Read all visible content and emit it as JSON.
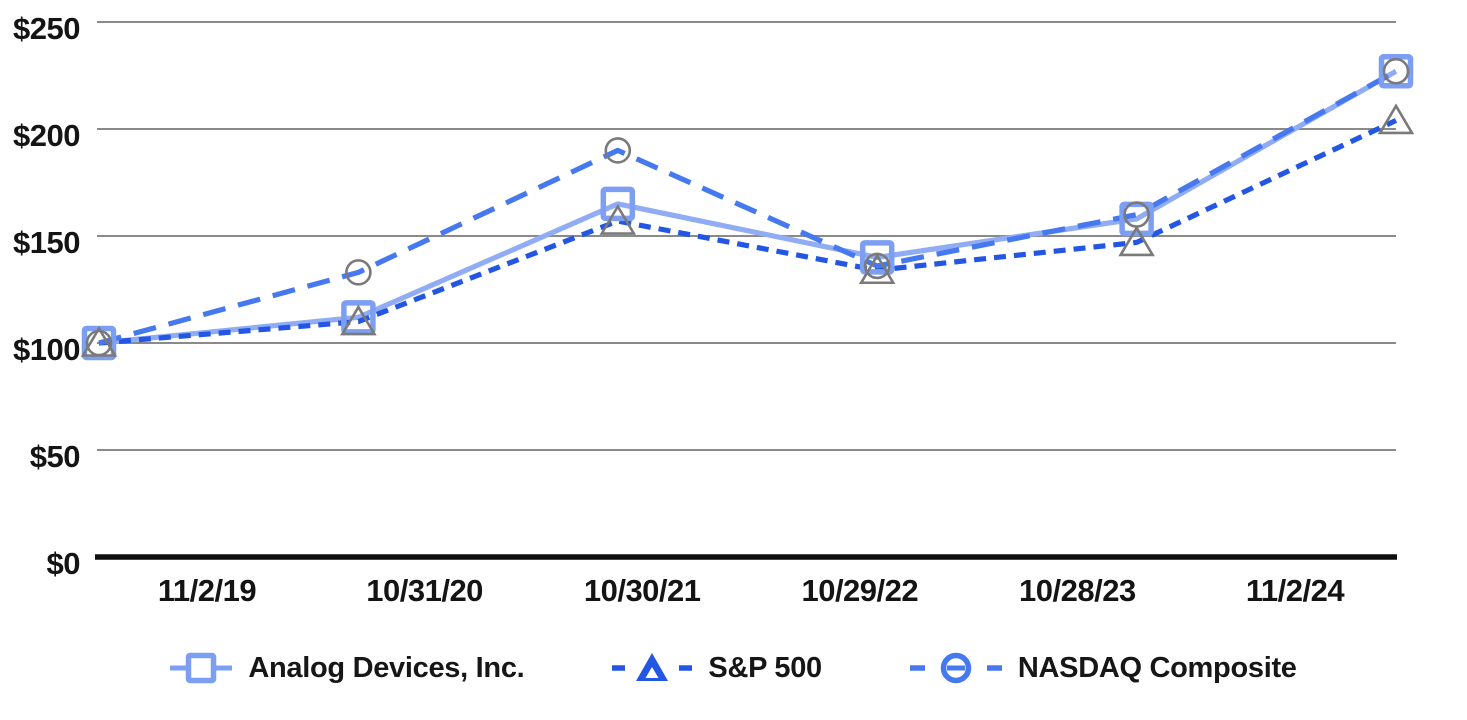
{
  "chart_data": {
    "type": "line",
    "title": "",
    "xlabel": "",
    "ylabel": "",
    "x_labels": [
      "11/2/19",
      "10/31/20",
      "10/30/21",
      "10/29/22",
      "10/28/23",
      "11/2/24"
    ],
    "y_ticks": [
      250,
      200,
      150,
      100,
      50,
      0
    ],
    "y_tick_labels": [
      "$250",
      "$200",
      "$150",
      "$100",
      "$50",
      "$0"
    ],
    "ylim": [
      0,
      250
    ],
    "grid": "horizontal",
    "legend_position": "bottom",
    "axis_color": "#0f0f0f",
    "gridline_color": "#8a8a8a",
    "series": [
      {
        "name": "Analog Devices, Inc.",
        "values": [
          100,
          112,
          165,
          140,
          158,
          227
        ],
        "line_style": "solid",
        "marker": "square",
        "color": "#8FACF5",
        "marker_color": "#7C9FF3"
      },
      {
        "name": "S&P 500",
        "values": [
          100,
          110,
          157,
          134,
          147,
          204
        ],
        "line_style": "dashed",
        "marker": "triangle",
        "color": "#2456E4",
        "marker_color": "#7A7A7A"
      },
      {
        "name": "NASDAQ Composite",
        "values": [
          100,
          133,
          190,
          136,
          160,
          227
        ],
        "line_style": "dashed",
        "marker": "circle",
        "color": "#4678EF",
        "marker_color": "#7A7A7A"
      }
    ]
  }
}
